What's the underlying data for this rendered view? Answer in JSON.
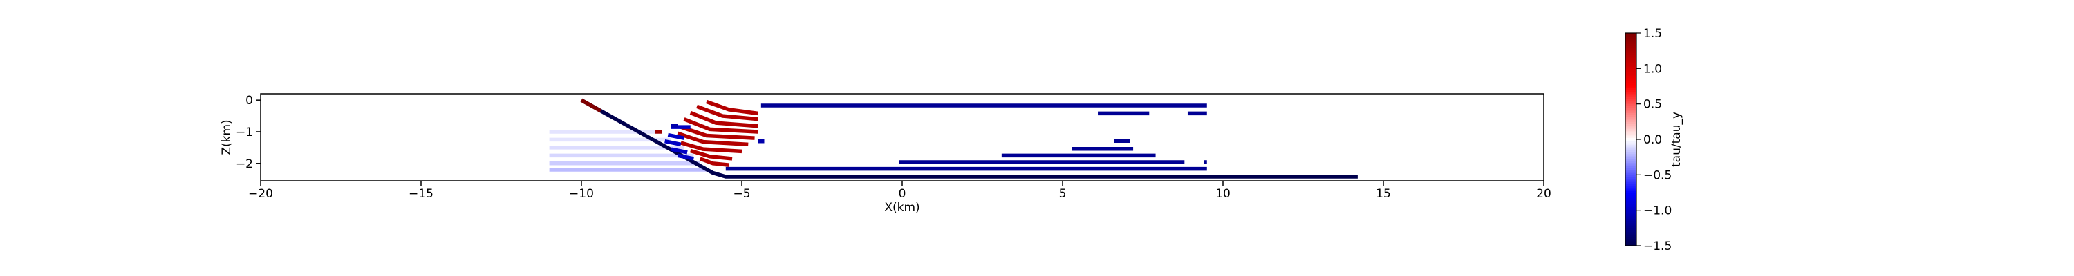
{
  "chart_data": {
    "type": "segments",
    "xlabel": "X(km)",
    "ylabel": "Z(km)",
    "xlim": [
      -20,
      20
    ],
    "ylim": [
      -2.55,
      0.2
    ],
    "xticks": [
      {
        "value": -20,
        "label": "−20"
      },
      {
        "value": -15,
        "label": "−15"
      },
      {
        "value": -10,
        "label": "−10"
      },
      {
        "value": -5,
        "label": "−5"
      },
      0,
      5,
      10,
      15,
      20
    ],
    "yticks": [
      0,
      {
        "value": -1,
        "label": "−1"
      },
      {
        "value": -2,
        "label": "−2"
      }
    ],
    "colorbar": {
      "label": "tau/tau_y",
      "cmap": "seismic",
      "lim": [
        -1.5,
        1.5
      ],
      "ticks": [
        {
          "value": 1.5,
          "label": "1.5"
        },
        {
          "value": 1.0,
          "label": "1.0"
        },
        {
          "value": 0.5,
          "label": "0.5"
        },
        {
          "value": 0.0,
          "label": "0.0"
        },
        {
          "value": -0.5,
          "label": "−0.5"
        },
        {
          "value": -1.0,
          "label": "−1.0"
        },
        {
          "value": -1.5,
          "label": "−1.5"
        }
      ]
    },
    "series": [
      {
        "x": [
          -11,
          -7.6
        ],
        "values": [
          -1.0,
          -1.0
        ],
        "c": -0.08
      },
      {
        "x": [
          -11,
          -7.2
        ],
        "values": [
          -1.25,
          -1.25
        ],
        "c": -0.08
      },
      {
        "x": [
          -11,
          -6.8
        ],
        "values": [
          -1.5,
          -1.5
        ],
        "c": -0.1
      },
      {
        "x": [
          -11,
          -6.5
        ],
        "values": [
          -1.75,
          -1.75
        ],
        "c": -0.12
      },
      {
        "x": [
          -11,
          -6.3
        ],
        "values": [
          -2.0,
          -2.0
        ],
        "c": -0.15
      },
      {
        "x": [
          -11,
          -6.1
        ],
        "values": [
          -2.2,
          -2.2
        ],
        "c": -0.2
      },
      {
        "x": [
          -10,
          -5.9,
          -5.5,
          14.2
        ],
        "values": [
          0,
          -2.3,
          -2.42,
          -2.42
        ],
        "c": -1.5
      },
      {
        "x": [
          -10,
          -9.4
        ],
        "values": [
          0,
          -0.34
        ],
        "c": 1.5
      },
      {
        "x": [
          -6.1,
          -5.4,
          -4.5
        ],
        "values": [
          -0.05,
          -0.3,
          -0.42
        ],
        "c": 1.2
      },
      {
        "x": [
          -6.4,
          -5.6,
          -4.5
        ],
        "values": [
          -0.2,
          -0.5,
          -0.6
        ],
        "c": 1.2
      },
      {
        "x": [
          -6.6,
          -5.8,
          -4.5
        ],
        "values": [
          -0.4,
          -0.72,
          -0.82
        ],
        "c": 1.2
      },
      {
        "x": [
          -6.8,
          -6.0,
          -4.5
        ],
        "values": [
          -0.6,
          -0.92,
          -1.0
        ],
        "c": 1.2
      },
      {
        "x": [
          -6.9,
          -6.1,
          -4.6
        ],
        "values": [
          -0.85,
          -1.12,
          -1.2
        ],
        "c": 1.2
      },
      {
        "x": [
          -7.0,
          -6.2,
          -4.8
        ],
        "values": [
          -1.05,
          -1.32,
          -1.4
        ],
        "c": 1.2
      },
      {
        "x": [
          -6.9,
          -6.2,
          -5.0
        ],
        "values": [
          -1.35,
          -1.55,
          -1.62
        ],
        "c": 1.2
      },
      {
        "x": [
          -6.6,
          -6.0,
          -5.3
        ],
        "values": [
          -1.6,
          -1.78,
          -1.85
        ],
        "c": 1.2
      },
      {
        "x": [
          -6.3,
          -5.9,
          -5.4
        ],
        "values": [
          -1.85,
          -2.0,
          -2.05
        ],
        "c": 1.2
      },
      {
        "x": [
          -7.2,
          -6.6
        ],
        "values": [
          -0.85,
          -0.85
        ],
        "c": -1.0
      },
      {
        "x": [
          -7.3,
          -6.8
        ],
        "values": [
          -1.1,
          -1.2
        ],
        "c": -1.0
      },
      {
        "x": [
          -7.4,
          -6.9
        ],
        "values": [
          -1.3,
          -1.4
        ],
        "c": -1.0
      },
      {
        "x": [
          -7.2,
          -6.7
        ],
        "values": [
          -1.55,
          -1.65
        ],
        "c": -1.0
      },
      {
        "x": [
          -7.0,
          -6.5
        ],
        "values": [
          -1.75,
          -1.85
        ],
        "c": -1.0
      },
      {
        "x": [
          -7.7,
          -7.5
        ],
        "values": [
          -1.0,
          -1.0
        ],
        "c": 1.3
      },
      {
        "x": [
          -7.2,
          -7.0
        ],
        "values": [
          -0.8,
          -0.8
        ],
        "c": -1.1
      },
      {
        "x": [
          -4.5,
          -4.3
        ],
        "values": [
          -1.3,
          -1.3
        ],
        "c": -1.1
      },
      {
        "x": [
          -4.4,
          9.5
        ],
        "values": [
          -0.17,
          -0.17
        ],
        "c": -1.2
      },
      {
        "x": [
          6.1,
          7.7
        ],
        "values": [
          -0.42,
          -0.42
        ],
        "c": -1.2
      },
      {
        "x": [
          8.9,
          9.5
        ],
        "values": [
          -0.42,
          -0.42
        ],
        "c": -1.2
      },
      {
        "x": [
          6.6,
          7.1
        ],
        "values": [
          -1.29,
          -1.29
        ],
        "c": -1.2
      },
      {
        "x": [
          5.3,
          7.2
        ],
        "values": [
          -1.54,
          -1.54
        ],
        "c": -1.2
      },
      {
        "x": [
          3.1,
          7.9
        ],
        "values": [
          -1.75,
          -1.75
        ],
        "c": -1.2
      },
      {
        "x": [
          -0.1,
          8.8
        ],
        "values": [
          -1.96,
          -1.96
        ],
        "c": -1.2
      },
      {
        "x": [
          9.4,
          9.5
        ],
        "values": [
          -1.96,
          -1.96
        ],
        "c": -1.2
      },
      {
        "x": [
          -5.5,
          9.5
        ],
        "values": [
          -2.17,
          -2.17
        ],
        "c": -1.2
      }
    ]
  }
}
